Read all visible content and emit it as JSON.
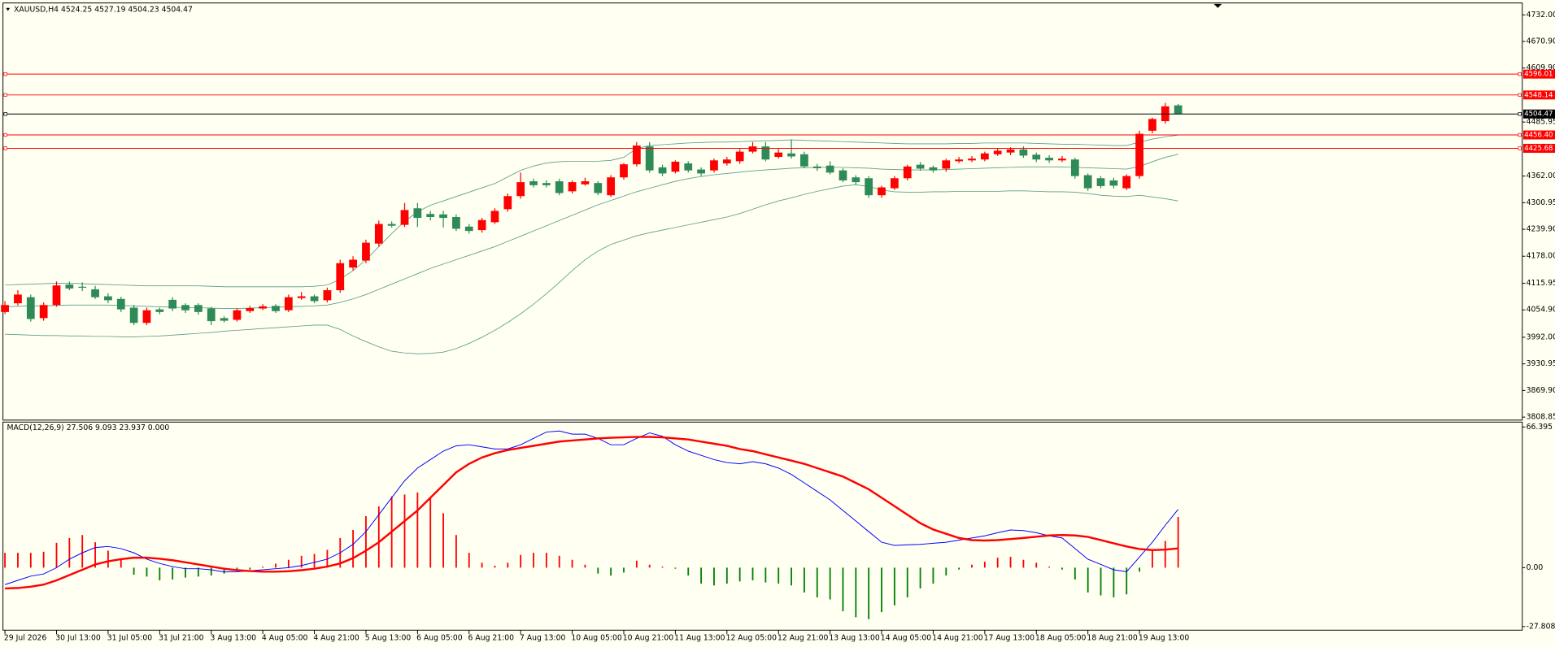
{
  "chart_data": [
    {
      "type": "candlestick",
      "title": "XAUUSD,H4  4524.25 4527.19 4504.23 4504.47",
      "open": [
        4050,
        4070,
        4084,
        4036,
        4066,
        4113,
        4108,
        4102,
        4086,
        4080,
        4060,
        4025,
        4056,
        4078,
        4066,
        4066,
        4058,
        4036,
        4032,
        4052,
        4058,
        4064,
        4054,
        4082,
        4086,
        4077,
        4100,
        4152,
        4168,
        4207,
        4252,
        4250,
        4288,
        4275,
        4274,
        4268,
        4246,
        4238,
        4256,
        4286,
        4316,
        4350,
        4346,
        4350,
        4327,
        4343,
        4346,
        4318,
        4359,
        4389,
        4430,
        4382,
        4372,
        4391,
        4377,
        4375,
        4391,
        4396,
        4418,
        4430,
        4406,
        4414,
        4412,
        4384,
        4386,
        4375,
        4359,
        4357,
        4318,
        4334,
        4357,
        4388,
        4382,
        4379,
        4396,
        4398,
        4400,
        4412,
        4416,
        4423,
        4411,
        4404,
        4398,
        4400,
        4364,
        4357,
        4352,
        4334,
        4362,
        4466,
        4488,
        4524.25
      ],
      "high": [
        4075,
        4100,
        4090,
        4072,
        4120,
        4120,
        4118,
        4110,
        4093,
        4085,
        4066,
        4060,
        4060,
        4084,
        4070,
        4070,
        4062,
        4040,
        4058,
        4064,
        4068,
        4068,
        4090,
        4096,
        4090,
        4106,
        4170,
        4178,
        4216,
        4260,
        4258,
        4300,
        4300,
        4282,
        4282,
        4274,
        4252,
        4266,
        4288,
        4322,
        4370,
        4356,
        4352,
        4356,
        4352,
        4358,
        4350,
        4364,
        4392,
        4440,
        4440,
        4388,
        4398,
        4396,
        4382,
        4402,
        4406,
        4424,
        4440,
        4440,
        4424,
        4446,
        4418,
        4390,
        4396,
        4380,
        4364,
        4362,
        4340,
        4362,
        4388,
        4394,
        4386,
        4402,
        4406,
        4408,
        4418,
        4426,
        4428,
        4430,
        4416,
        4410,
        4408,
        4404,
        4368,
        4362,
        4358,
        4366,
        4466,
        4496,
        4530,
        4527.19
      ],
      "low": [
        4045,
        4065,
        4028,
        4030,
        4062,
        4100,
        4098,
        4080,
        4070,
        4050,
        4020,
        4020,
        4045,
        4052,
        4048,
        4044,
        4020,
        4026,
        4028,
        4048,
        4054,
        4048,
        4050,
        4078,
        4070,
        4072,
        4094,
        4145,
        4162,
        4200,
        4244,
        4245,
        4245,
        4260,
        4244,
        4236,
        4230,
        4232,
        4252,
        4280,
        4310,
        4336,
        4336,
        4318,
        4322,
        4340,
        4318,
        4314,
        4354,
        4384,
        4370,
        4362,
        4368,
        4370,
        4362,
        4370,
        4386,
        4390,
        4414,
        4396,
        4402,
        4402,
        4380,
        4374,
        4366,
        4348,
        4342,
        4312,
        4312,
        4330,
        4352,
        4374,
        4370,
        4372,
        4392,
        4394,
        4396,
        4408,
        4410,
        4404,
        4394,
        4392,
        4394,
        4356,
        4328,
        4334,
        4334,
        4330,
        4356,
        4460,
        4482,
        4504.23
      ],
      "close": [
        4066,
        4090,
        4034,
        4066,
        4111,
        4104,
        4106,
        4084,
        4077,
        4056,
        4025,
        4054,
        4050,
        4058,
        4054,
        4050,
        4029,
        4030,
        4054,
        4059,
        4063,
        4052,
        4084,
        4086,
        4075,
        4100,
        4162,
        4170,
        4209,
        4252,
        4248,
        4284,
        4266,
        4268,
        4266,
        4241,
        4236,
        4261,
        4282,
        4316,
        4348,
        4341,
        4341,
        4323,
        4348,
        4350,
        4323,
        4359,
        4389,
        4432,
        4375,
        4368,
        4395,
        4375,
        4368,
        4398,
        4400,
        4418,
        4430,
        4400,
        4416,
        4407,
        4384,
        4380,
        4370,
        4352,
        4348,
        4318,
        4336,
        4357,
        4384,
        4379,
        4375,
        4398,
        4400,
        4402,
        4414,
        4420,
        4423,
        4409,
        4400,
        4398,
        4402,
        4362,
        4334,
        4339,
        4340,
        4362,
        4459,
        4493,
        4522,
        4504.47
      ],
      "up_color": "#ff0000",
      "down_color": "#2e8b57",
      "bands": {
        "color": "#5a9e8c",
        "upper": [
          4112,
          4113,
          4114,
          4115,
          4116,
          4116,
          4115,
          4114,
          4113,
          4112,
          4111,
          4110,
          4110,
          4110,
          4110,
          4110,
          4109,
          4108,
          4108,
          4108,
          4108,
          4108,
          4108,
          4108,
          4109,
          4112,
          4125,
          4145,
          4170,
          4200,
          4230,
          4258,
          4280,
          4295,
          4305,
          4315,
          4325,
          4335,
          4345,
          4360,
          4375,
          4385,
          4392,
          4395,
          4396,
          4396,
          4396,
          4398,
          4405,
          4425,
          4432,
          4434,
          4436,
          4438,
          4439,
          4440,
          4440,
          4441,
          4442,
          4443,
          4444,
          4445,
          4444,
          4443,
          4442,
          4441,
          4440,
          4439,
          4438,
          4437,
          4436,
          4436,
          4436,
          4436,
          4437,
          4437,
          4438,
          4438,
          4438,
          4438,
          4437,
          4436,
          4435,
          4435,
          4434,
          4433,
          4432,
          4432,
          4440,
          4447,
          4452,
          4456
        ],
        "middle": [
          4062,
          4063,
          4064,
          4064,
          4065,
          4066,
          4066,
          4066,
          4066,
          4065,
          4064,
          4063,
          4062,
          4061,
          4060,
          4060,
          4059,
          4058,
          4058,
          4059,
          4060,
          4061,
          4062,
          4063,
          4064,
          4066,
          4072,
          4080,
          4090,
          4102,
          4114,
          4126,
          4138,
          4150,
          4160,
          4170,
          4180,
          4190,
          4200,
          4212,
          4224,
          4236,
          4248,
          4260,
          4272,
          4284,
          4296,
          4306,
          4316,
          4326,
          4334,
          4342,
          4350,
          4356,
          4361,
          4365,
          4368,
          4371,
          4374,
          4376,
          4378,
          4380,
          4381,
          4382,
          4382,
          4382,
          4381,
          4380,
          4378,
          4377,
          4376,
          4376,
          4376,
          4377,
          4378,
          4379,
          4380,
          4381,
          4382,
          4383,
          4383,
          4383,
          4383,
          4382,
          4381,
          4380,
          4379,
          4378,
          4384,
          4395,
          4405,
          4412
        ],
        "lower": [
          3999,
          3998,
          3997,
          3996,
          3996,
          3995,
          3995,
          3994,
          3994,
          3993,
          3993,
          3994,
          3995,
          3997,
          3999,
          4001,
          4003,
          4006,
          4008,
          4010,
          4012,
          4014,
          4016,
          4018,
          4020,
          4020,
          4010,
          3995,
          3982,
          3970,
          3960,
          3956,
          3954,
          3955,
          3958,
          3966,
          3978,
          3992,
          4008,
          4026,
          4046,
          4068,
          4092,
          4118,
          4145,
          4170,
          4190,
          4205,
          4215,
          4225,
          4232,
          4238,
          4244,
          4250,
          4256,
          4262,
          4268,
          4276,
          4286,
          4296,
          4305,
          4312,
          4320,
          4327,
          4333,
          4339,
          4342,
          4338,
          4330,
          4326,
          4325,
          4325,
          4326,
          4326,
          4327,
          4327,
          4327,
          4327,
          4328,
          4328,
          4327,
          4326,
          4326,
          4325,
          4322,
          4318,
          4316,
          4315,
          4318,
          4314,
          4310,
          4305
        ]
      },
      "levels": [
        4596.01,
        {
          "value": 4548.14,
          "label": "4548.14"
        },
        {
          "value": 4456.4,
          "label": "4456.40"
        },
        4425.68
      ],
      "level_color": "#ff0000",
      "current_price": 4504.47,
      "current_color": "#000000",
      "ylim": [
        3801.9,
        4754.7
      ],
      "yticks": [
        {
          "value": 4732.0,
          "label": "4732.00"
        },
        {
          "value": 4670.9,
          "label": "4670.90"
        },
        {
          "value": 4609.9,
          "label": "4609.90"
        },
        4485.95,
        {
          "value": 4362.0,
          "label": "4362.00"
        },
        4300.95,
        {
          "value": 4239.9,
          "label": "4239.90"
        },
        {
          "value": 4178.0,
          "label": "4178.00"
        },
        4115.95,
        {
          "value": 4054.9,
          "label": "4054.90"
        },
        {
          "value": 3992.0,
          "label": "3992.00"
        },
        3930.95,
        {
          "value": 3869.9,
          "label": "3869.90"
        },
        3808.85
      ]
    },
    {
      "type": "macd",
      "title": "MACD(12,26,9) 27.506 9.093 23.937 0.000",
      "categories": [
        "29 Jul 2026",
        null,
        null,
        null,
        "30 Jul 13:00",
        null,
        null,
        null,
        "31 Jul 05:00",
        null,
        null,
        null,
        "31 Jul 21:00",
        null,
        null,
        null,
        "3 Aug 13:00",
        null,
        null,
        null,
        "4 Aug 05:00",
        null,
        null,
        null,
        "4 Aug 21:00",
        null,
        null,
        null,
        "5 Aug 13:00",
        null,
        null,
        null,
        "6 Aug 05:00",
        null,
        null,
        null,
        "6 Aug 21:00",
        null,
        null,
        null,
        "7 Aug 13:00",
        null,
        null,
        null,
        "10 Aug 05:00",
        null,
        null,
        null,
        "10 Aug 21:00",
        null,
        null,
        null,
        "11 Aug 13:00",
        null,
        null,
        null,
        "12 Aug 05:00",
        null,
        null,
        null,
        "12 Aug 21:00",
        null,
        null,
        null,
        "13 Aug 13:00",
        null,
        null,
        null,
        "14 Aug 05:00",
        null,
        null,
        null,
        "14 Aug 21:00",
        null,
        null,
        null,
        "17 Aug 13:00",
        null,
        null,
        null,
        "18 Aug 05:00",
        null,
        null,
        null,
        "18 Aug 21:00",
        null,
        null,
        null,
        "19 Aug 13:00",
        null,
        null,
        null
      ],
      "macd": [
        -8,
        -6,
        -4,
        -3,
        0,
        4,
        7,
        9.5,
        10,
        9,
        7,
        4,
        2,
        0.5,
        -0.5,
        -0.5,
        -1,
        -2,
        -1.9,
        -1.5,
        -1,
        -0.5,
        0,
        1,
        2.5,
        4,
        7,
        11,
        17,
        25,
        33,
        41,
        47,
        51,
        55,
        57.5,
        58,
        57,
        56,
        56,
        58,
        61,
        64,
        64.5,
        63,
        63,
        61,
        58,
        58,
        61,
        63.6,
        62,
        58,
        55,
        53,
        51,
        49.6,
        49,
        50,
        49,
        47,
        44,
        40,
        36,
        32,
        27,
        22,
        17,
        12,
        10.5,
        10.8,
        11,
        11.5,
        12,
        13,
        14,
        15,
        16.5,
        17.8,
        17.5,
        16.5,
        15,
        14,
        9,
        4,
        1.5,
        -1,
        -1.9,
        5,
        12,
        20,
        27.506
      ],
      "macd_color": "#0000ff",
      "signal": [
        -9.8,
        -9.6,
        -9,
        -8,
        -6,
        -3.5,
        -1,
        1.5,
        3,
        4,
        4.7,
        4.7,
        4.2,
        3.5,
        2.5,
        1.5,
        0.5,
        -0.5,
        -1.2,
        -1.6,
        -1.9,
        -1.9,
        -1.7,
        -1.2,
        -0.5,
        0.5,
        2,
        4.5,
        8,
        12,
        17,
        22,
        27,
        33,
        39,
        45,
        49,
        52,
        54,
        55.5,
        56.5,
        57.5,
        58.5,
        59.5,
        60,
        60.5,
        61,
        61.3,
        61.5,
        61.7,
        61.7,
        61.5,
        61,
        60.5,
        59.5,
        58.5,
        57.5,
        56,
        55,
        53.5,
        52,
        50.5,
        49,
        47,
        45,
        43,
        40,
        37,
        33,
        29,
        25,
        21,
        18,
        16,
        14,
        13,
        12.8,
        13,
        13.5,
        14,
        14.6,
        15.2,
        15.4,
        15.2,
        14.5,
        13,
        11.5,
        10,
        8.8,
        8.3,
        8.5,
        9.093
      ],
      "signal_color": "#ff0000",
      "histogram": [
        7,
        7,
        7,
        7.5,
        11.7,
        14,
        15.4,
        12,
        8,
        3.7,
        -3.3,
        -4.2,
        -6,
        -5.6,
        -4.7,
        -4.2,
        -3.7,
        -2.8,
        -1.4,
        -0.9,
        0.5,
        1.9,
        3.7,
        5.6,
        6.5,
        8.4,
        14,
        17.8,
        24.3,
        28.9,
        33.6,
        34.5,
        35.5,
        33,
        25.7,
        15.4,
        7,
        2.3,
        0.9,
        2.3,
        6,
        7,
        7,
        5.6,
        3.7,
        1.4,
        -2.8,
        -3.7,
        -2.3,
        3.3,
        1.4,
        0.5,
        -0.5,
        -3.7,
        -7.5,
        -8.4,
        -7.5,
        -6.5,
        -6,
        -7,
        -7.5,
        -8.4,
        -11.7,
        -14,
        -15,
        -20.6,
        -23.4,
        -24.3,
        -21,
        -17.8,
        -14,
        -9.8,
        -7.5,
        -3.7,
        -0.9,
        1.4,
        2.8,
        4.7,
        5.1,
        3.7,
        2.3,
        0.5,
        -0.9,
        -5.6,
        -11.7,
        -13.1,
        -14,
        -12.6,
        -1.9,
        8.4,
        12.6,
        23.937
      ],
      "hist_up_color": "#ff0000",
      "hist_down_color": "#008000",
      "ylim": [
        -29.5,
        68.7
      ],
      "yticks": [
        66.395,
        {
          "value": 0,
          "label": "0.00"
        },
        -27.808
      ]
    }
  ]
}
